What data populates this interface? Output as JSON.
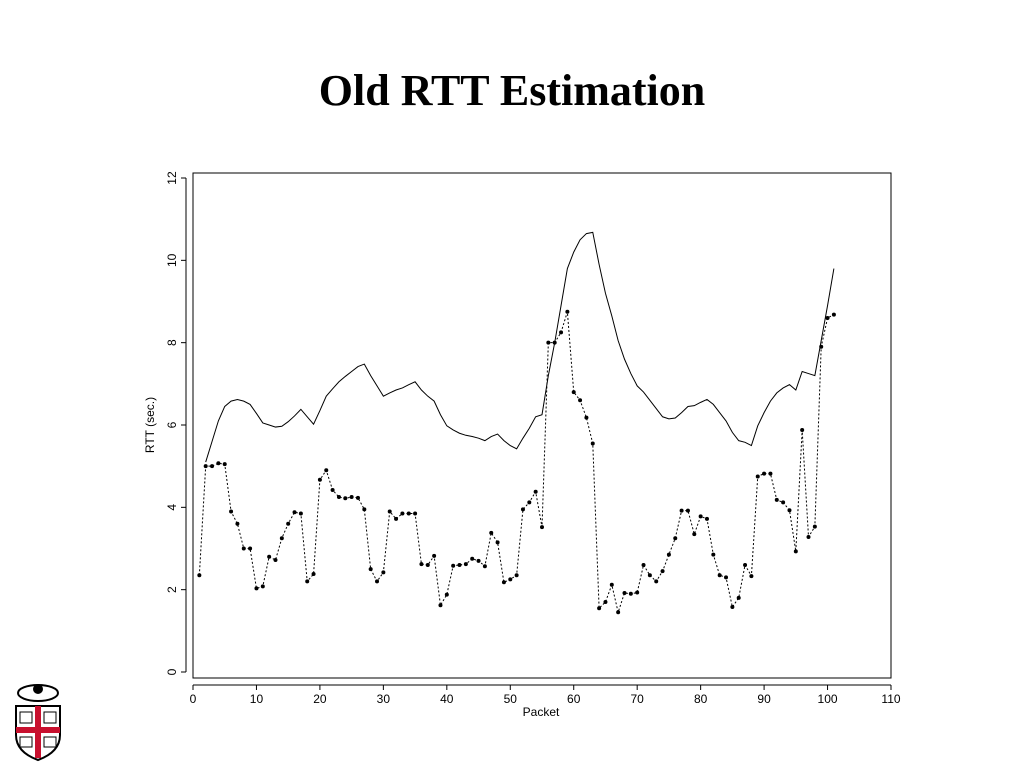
{
  "chart_data": {
    "type": "line",
    "title": "Old RTT Estimation",
    "xlabel": "Packet",
    "ylabel": "RTT (sec.)",
    "x": [
      1,
      2,
      3,
      4,
      5,
      6,
      7,
      8,
      9,
      10,
      11,
      12,
      13,
      14,
      15,
      16,
      17,
      18,
      19,
      20,
      21,
      22,
      23,
      24,
      25,
      26,
      27,
      28,
      29,
      30,
      31,
      32,
      33,
      34,
      35,
      36,
      37,
      38,
      39,
      40,
      41,
      42,
      43,
      44,
      45,
      46,
      47,
      48,
      49,
      50,
      51,
      52,
      53,
      54,
      55,
      56,
      57,
      58,
      59,
      60,
      61,
      62,
      63,
      64,
      65,
      66,
      67,
      68,
      69,
      70,
      71,
      72,
      73,
      74,
      75,
      76,
      77,
      78,
      79,
      80,
      81,
      82,
      83,
      84,
      85,
      86,
      87,
      88,
      89,
      90,
      91,
      92,
      93,
      94,
      95,
      96,
      97,
      98,
      99,
      100,
      101
    ],
    "series": [
      {
        "color": "#000000",
        "style": "solid",
        "markers": false,
        "values": [
          null,
          5.1,
          5.6,
          6.1,
          6.45,
          6.58,
          6.62,
          6.58,
          6.5,
          6.28,
          6.05,
          6.0,
          5.95,
          5.97,
          6.08,
          6.22,
          6.38,
          6.2,
          6.02,
          6.35,
          6.7,
          6.88,
          7.05,
          7.18,
          7.3,
          7.42,
          7.48,
          7.2,
          6.95,
          6.7,
          6.78,
          6.85,
          6.9,
          6.98,
          7.05,
          6.85,
          6.7,
          6.58,
          6.25,
          5.98,
          5.88,
          5.8,
          5.75,
          5.72,
          5.68,
          5.62,
          5.72,
          5.78,
          5.62,
          5.5,
          5.42,
          5.68,
          5.92,
          6.2,
          6.25,
          7.2,
          8.0,
          8.9,
          9.8,
          10.2,
          10.5,
          10.65,
          10.68,
          9.9,
          9.2,
          8.65,
          8.05,
          7.6,
          7.25,
          6.95,
          6.8,
          6.6,
          6.4,
          6.2,
          6.15,
          6.17,
          6.3,
          6.45,
          6.47,
          6.55,
          6.62,
          6.5,
          6.3,
          6.1,
          5.82,
          5.62,
          5.58,
          5.5,
          5.98,
          6.3,
          6.58,
          6.78,
          6.9,
          6.98,
          6.85,
          7.3,
          7.25,
          7.2,
          8.05,
          8.9,
          9.8
        ]
      },
      {
        "color": "#000000",
        "style": "dashed",
        "markers": true,
        "values": [
          2.35,
          5.0,
          5.0,
          5.07,
          5.05,
          3.9,
          3.6,
          3.0,
          3.0,
          2.03,
          2.08,
          2.8,
          2.72,
          3.25,
          3.6,
          3.88,
          3.85,
          2.2,
          2.38,
          4.67,
          4.9,
          4.42,
          4.25,
          4.22,
          4.25,
          4.23,
          3.95,
          2.5,
          2.2,
          2.42,
          3.9,
          3.72,
          3.85,
          3.85,
          3.85,
          2.62,
          2.6,
          2.82,
          1.62,
          1.88,
          2.58,
          2.6,
          2.62,
          2.75,
          2.7,
          2.57,
          3.38,
          3.15,
          2.18,
          2.25,
          2.35,
          3.95,
          4.12,
          4.38,
          3.52,
          8.0,
          8.0,
          8.25,
          8.75,
          6.8,
          6.6,
          6.18,
          5.55,
          1.55,
          1.7,
          2.12,
          1.45,
          1.92,
          1.9,
          1.93,
          2.6,
          2.35,
          2.2,
          2.45,
          2.85,
          3.25,
          3.92,
          3.92,
          3.35,
          3.78,
          3.72,
          2.85,
          2.35,
          2.3,
          1.58,
          1.8,
          2.6,
          2.33,
          4.75,
          4.82,
          4.82,
          4.18,
          4.12,
          3.93,
          2.93,
          5.88,
          3.28,
          3.53,
          7.9,
          8.6,
          8.68
        ]
      }
    ],
    "xlim": [
      0,
      110
    ],
    "xticks": [
      0,
      10,
      20,
      30,
      40,
      50,
      60,
      70,
      80,
      90,
      100,
      110
    ],
    "ylim": [
      0,
      12
    ],
    "yticks": [
      0,
      2,
      4,
      6,
      8,
      10,
      12
    ],
    "grid": false
  }
}
